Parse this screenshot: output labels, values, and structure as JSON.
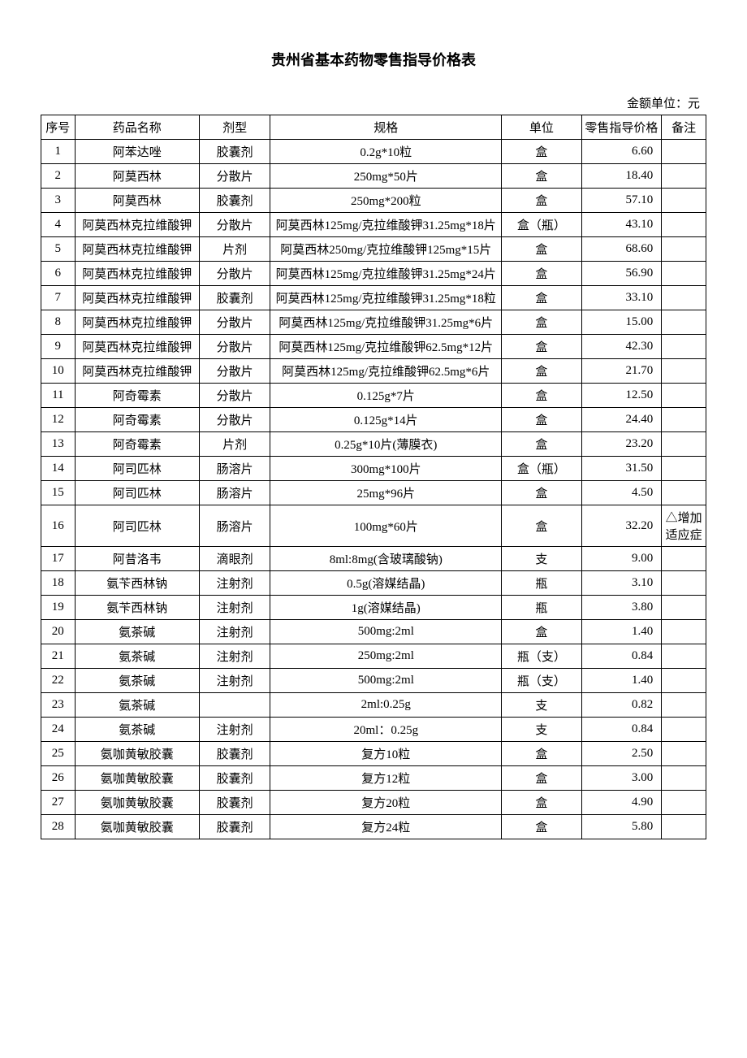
{
  "title": "贵州省基本药物零售指导价格表",
  "unit_label": "金额单位：元",
  "watermark": "",
  "columns": {
    "seq": "序号",
    "name": "药品名称",
    "form": "剂型",
    "spec": "规格",
    "unit": "单位",
    "price": "零售指导价格",
    "note": "备注"
  },
  "rows": [
    {
      "seq": "1",
      "name": "阿苯达唑",
      "form": "胶囊剂",
      "spec": "0.2g*10粒",
      "unit": "盒",
      "price": "6.60",
      "note": ""
    },
    {
      "seq": "2",
      "name": "阿莫西林",
      "form": "分散片",
      "spec": "250mg*50片",
      "unit": "盒",
      "price": "18.40",
      "note": ""
    },
    {
      "seq": "3",
      "name": "阿莫西林",
      "form": "胶囊剂",
      "spec": "250mg*200粒",
      "unit": "盒",
      "price": "57.10",
      "note": ""
    },
    {
      "seq": "4",
      "name": "阿莫西林克拉维酸钾",
      "form": "分散片",
      "spec": "阿莫西林125mg/克拉维酸钾31.25mg*18片",
      "unit": "盒（瓶）",
      "price": "43.10",
      "note": ""
    },
    {
      "seq": "5",
      "name": "阿莫西林克拉维酸钾",
      "form": "片剂",
      "spec": "阿莫西林250mg/克拉维酸钾125mg*15片",
      "unit": "盒",
      "price": "68.60",
      "note": ""
    },
    {
      "seq": "6",
      "name": "阿莫西林克拉维酸钾",
      "form": "分散片",
      "spec": "阿莫西林125mg/克拉维酸钾31.25mg*24片",
      "unit": "盒",
      "price": "56.90",
      "note": ""
    },
    {
      "seq": "7",
      "name": "阿莫西林克拉维酸钾",
      "form": "胶囊剂",
      "spec": "阿莫西林125mg/克拉维酸钾31.25mg*18粒",
      "unit": "盒",
      "price": "33.10",
      "note": ""
    },
    {
      "seq": "8",
      "name": "阿莫西林克拉维酸钾",
      "form": "分散片",
      "spec": "阿莫西林125mg/克拉维酸钾31.25mg*6片",
      "unit": "盒",
      "price": "15.00",
      "note": ""
    },
    {
      "seq": "9",
      "name": "阿莫西林克拉维酸钾",
      "form": "分散片",
      "spec": "阿莫西林125mg/克拉维酸钾62.5mg*12片",
      "unit": "盒",
      "price": "42.30",
      "note": ""
    },
    {
      "seq": "10",
      "name": "阿莫西林克拉维酸钾",
      "form": "分散片",
      "spec": "阿莫西林125mg/克拉维酸钾62.5mg*6片",
      "unit": "盒",
      "price": "21.70",
      "note": ""
    },
    {
      "seq": "11",
      "name": "阿奇霉素",
      "form": "分散片",
      "spec": "0.125g*7片",
      "unit": "盒",
      "price": "12.50",
      "note": ""
    },
    {
      "seq": "12",
      "name": "阿奇霉素",
      "form": "分散片",
      "spec": "0.125g*14片",
      "unit": "盒",
      "price": "24.40",
      "note": ""
    },
    {
      "seq": "13",
      "name": "阿奇霉素",
      "form": "片剂",
      "spec": "0.25g*10片(薄膜衣)",
      "unit": "盒",
      "price": "23.20",
      "note": ""
    },
    {
      "seq": "14",
      "name": "阿司匹林",
      "form": "肠溶片",
      "spec": "300mg*100片",
      "unit": "盒（瓶）",
      "price": "31.50",
      "note": ""
    },
    {
      "seq": "15",
      "name": "阿司匹林",
      "form": "肠溶片",
      "spec": "25mg*96片",
      "unit": "盒",
      "price": "4.50",
      "note": ""
    },
    {
      "seq": "16",
      "name": "阿司匹林",
      "form": "肠溶片",
      "spec": "100mg*60片",
      "unit": "盒",
      "price": "32.20",
      "note": "△增加适应症"
    },
    {
      "seq": "17",
      "name": "阿昔洛韦",
      "form": "滴眼剂",
      "spec": "8ml:8mg(含玻璃酸钠)",
      "unit": "支",
      "price": "9.00",
      "note": ""
    },
    {
      "seq": "18",
      "name": "氨苄西林钠",
      "form": "注射剂",
      "spec": "0.5g(溶媒结晶)",
      "unit": "瓶",
      "price": "3.10",
      "note": ""
    },
    {
      "seq": "19",
      "name": "氨苄西林钠",
      "form": "注射剂",
      "spec": "1g(溶媒结晶)",
      "unit": "瓶",
      "price": "3.80",
      "note": ""
    },
    {
      "seq": "20",
      "name": "氨茶碱",
      "form": "注射剂",
      "spec": "500mg:2ml",
      "unit": "盒",
      "price": "1.40",
      "note": ""
    },
    {
      "seq": "21",
      "name": "氨茶碱",
      "form": "注射剂",
      "spec": "250mg:2ml",
      "unit": "瓶（支）",
      "price": "0.84",
      "note": ""
    },
    {
      "seq": "22",
      "name": "氨茶碱",
      "form": "注射剂",
      "spec": "500mg:2ml",
      "unit": "瓶（支）",
      "price": "1.40",
      "note": ""
    },
    {
      "seq": "23",
      "name": "氨茶碱",
      "form": "",
      "spec": "2ml:0.25g",
      "unit": "支",
      "price": "0.82",
      "note": ""
    },
    {
      "seq": "24",
      "name": "氨茶碱",
      "form": "注射剂",
      "spec": "20ml：0.25g",
      "unit": "支",
      "price": "0.84",
      "note": ""
    },
    {
      "seq": "25",
      "name": "氨咖黄敏胶囊",
      "form": "胶囊剂",
      "spec": "复方10粒",
      "unit": "盒",
      "price": "2.50",
      "note": ""
    },
    {
      "seq": "26",
      "name": "氨咖黄敏胶囊",
      "form": "胶囊剂",
      "spec": "复方12粒",
      "unit": "盒",
      "price": "3.00",
      "note": ""
    },
    {
      "seq": "27",
      "name": "氨咖黄敏胶囊",
      "form": "胶囊剂",
      "spec": "复方20粒",
      "unit": "盒",
      "price": "4.90",
      "note": ""
    },
    {
      "seq": "28",
      "name": "氨咖黄敏胶囊",
      "form": "胶囊剂",
      "spec": "复方24粒",
      "unit": "盒",
      "price": "5.80",
      "note": ""
    }
  ]
}
